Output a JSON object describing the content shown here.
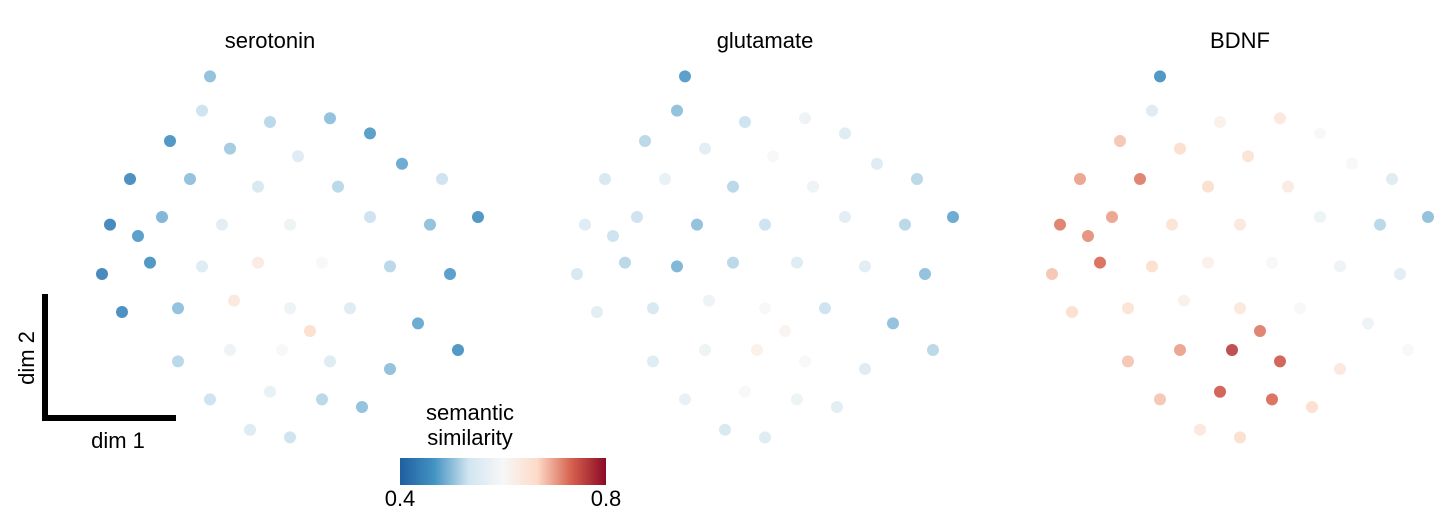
{
  "chart_data": [
    {
      "type": "scatter",
      "title": "serotonin",
      "xlim": [
        0,
        100
      ],
      "ylim": [
        0,
        100
      ],
      "x": [
        30,
        28,
        45,
        60,
        70,
        20,
        35,
        52,
        78,
        88,
        10,
        25,
        42,
        62,
        97,
        5,
        18,
        33,
        50,
        70,
        85,
        3,
        15,
        28,
        42,
        58,
        75,
        90,
        8,
        22,
        36,
        50,
        65,
        82,
        92,
        22,
        35,
        48,
        60,
        75,
        30,
        45,
        58,
        68,
        40,
        50,
        55,
        12
      ],
      "y": [
        97,
        88,
        85,
        86,
        82,
        80,
        78,
        76,
        74,
        70,
        70,
        70,
        68,
        68,
        60,
        58,
        60,
        58,
        58,
        60,
        58,
        45,
        48,
        47,
        48,
        48,
        47,
        45,
        35,
        36,
        38,
        36,
        36,
        32,
        25,
        22,
        25,
        25,
        22,
        20,
        12,
        14,
        12,
        10,
        4,
        2,
        30,
        55
      ],
      "values": [
        0.5,
        0.53,
        0.52,
        0.5,
        0.47,
        0.46,
        0.51,
        0.55,
        0.48,
        0.53,
        0.45,
        0.5,
        0.54,
        0.52,
        0.46,
        0.44,
        0.49,
        0.56,
        0.58,
        0.53,
        0.5,
        0.44,
        0.46,
        0.55,
        0.63,
        0.6,
        0.52,
        0.47,
        0.45,
        0.5,
        0.64,
        0.58,
        0.55,
        0.48,
        0.46,
        0.52,
        0.58,
        0.6,
        0.55,
        0.5,
        0.53,
        0.57,
        0.52,
        0.5,
        0.55,
        0.53,
        0.66,
        0.47
      ]
    },
    {
      "type": "scatter",
      "title": "glutamate",
      "xlim": [
        0,
        100
      ],
      "ylim": [
        0,
        100
      ],
      "x": [
        30,
        28,
        45,
        60,
        70,
        20,
        35,
        52,
        78,
        88,
        10,
        25,
        42,
        62,
        97,
        5,
        18,
        33,
        50,
        70,
        85,
        3,
        15,
        28,
        42,
        58,
        75,
        90,
        8,
        22,
        36,
        50,
        65,
        82,
        92,
        22,
        35,
        48,
        60,
        75,
        30,
        45,
        58,
        68,
        40,
        50,
        55,
        12
      ],
      "y": [
        97,
        88,
        85,
        86,
        82,
        80,
        78,
        76,
        74,
        70,
        70,
        70,
        68,
        68,
        60,
        58,
        60,
        58,
        58,
        60,
        58,
        45,
        48,
        47,
        48,
        48,
        47,
        45,
        35,
        36,
        38,
        36,
        36,
        32,
        25,
        22,
        25,
        25,
        22,
        20,
        12,
        14,
        12,
        10,
        4,
        2,
        30,
        55
      ],
      "values": [
        0.47,
        0.5,
        0.53,
        0.58,
        0.55,
        0.52,
        0.56,
        0.6,
        0.55,
        0.52,
        0.54,
        0.57,
        0.52,
        0.58,
        0.48,
        0.55,
        0.53,
        0.5,
        0.53,
        0.56,
        0.52,
        0.54,
        0.52,
        0.49,
        0.52,
        0.55,
        0.56,
        0.5,
        0.56,
        0.54,
        0.58,
        0.6,
        0.53,
        0.5,
        0.52,
        0.55,
        0.58,
        0.62,
        0.6,
        0.55,
        0.57,
        0.6,
        0.58,
        0.56,
        0.54,
        0.55,
        0.61,
        0.53
      ]
    },
    {
      "type": "scatter",
      "title": "BDNF",
      "xlim": [
        0,
        100
      ],
      "ylim": [
        0,
        100
      ],
      "x": [
        30,
        28,
        45,
        60,
        70,
        20,
        35,
        52,
        78,
        88,
        10,
        25,
        42,
        62,
        97,
        5,
        18,
        33,
        50,
        70,
        85,
        3,
        15,
        28,
        42,
        58,
        75,
        90,
        8,
        22,
        36,
        50,
        65,
        82,
        92,
        22,
        35,
        48,
        60,
        75,
        30,
        45,
        58,
        68,
        40,
        50,
        55,
        12
      ],
      "y": [
        97,
        88,
        85,
        86,
        82,
        80,
        78,
        76,
        74,
        70,
        70,
        70,
        68,
        68,
        60,
        58,
        60,
        58,
        58,
        60,
        58,
        45,
        48,
        47,
        48,
        48,
        47,
        45,
        35,
        36,
        38,
        36,
        36,
        32,
        25,
        22,
        25,
        25,
        22,
        20,
        12,
        14,
        12,
        10,
        4,
        2,
        30,
        55
      ],
      "values": [
        0.46,
        0.55,
        0.62,
        0.64,
        0.6,
        0.68,
        0.66,
        0.65,
        0.6,
        0.55,
        0.7,
        0.72,
        0.66,
        0.63,
        0.5,
        0.72,
        0.7,
        0.65,
        0.64,
        0.58,
        0.52,
        0.68,
        0.73,
        0.66,
        0.62,
        0.6,
        0.58,
        0.56,
        0.66,
        0.65,
        0.62,
        0.64,
        0.6,
        0.58,
        0.6,
        0.68,
        0.7,
        0.76,
        0.74,
        0.64,
        0.68,
        0.74,
        0.73,
        0.66,
        0.64,
        0.66,
        0.72,
        0.71
      ]
    }
  ],
  "colorbar": {
    "label": "semantic similarity",
    "clim": [
      0.4,
      0.8
    ],
    "ticks": [
      0.4,
      0.8
    ],
    "colormap": [
      "#1f5fa0",
      "#4393c3",
      "#d1e5f0",
      "#f7f7f7",
      "#fddbc7",
      "#d6604d",
      "#8b0a26"
    ]
  },
  "scale_bar": {
    "xlabel": "dim 1",
    "ylabel": "dim 2"
  }
}
